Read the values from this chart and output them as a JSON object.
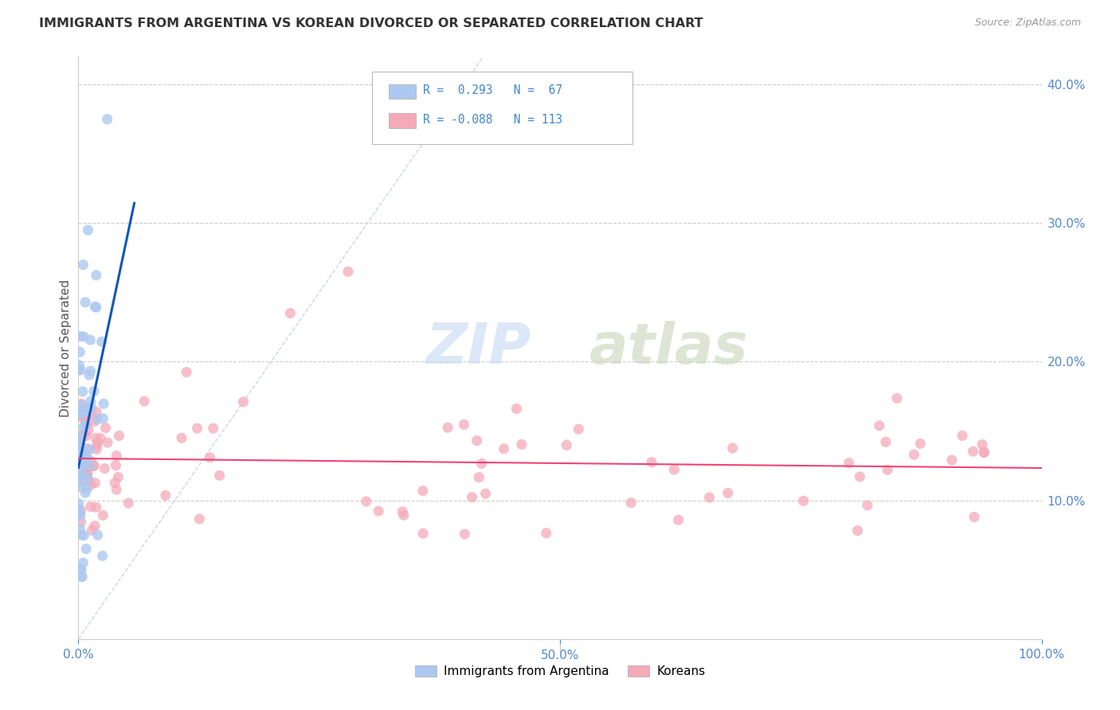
{
  "title": "IMMIGRANTS FROM ARGENTINA VS KOREAN DIVORCED OR SEPARATED CORRELATION CHART",
  "source": "Source: ZipAtlas.com",
  "ylabel": "Divorced or Separated",
  "xlim": [
    0.0,
    1.0
  ],
  "ylim": [
    0.0,
    0.42
  ],
  "argentina_color": "#adc8f0",
  "argentina_edge": "#adc8f0",
  "korean_color": "#f5aaba",
  "korean_edge": "#f5aaba",
  "trend_argentina_color": "#1155bb",
  "trend_korean_color": "#ee4477",
  "diagonal_color": "#c0cce0",
  "background_color": "#ffffff",
  "grid_color": "#cccccc",
  "title_color": "#333333",
  "source_color": "#999999",
  "axis_color": "#5588cc",
  "legend_text_color_blue": "#4488cc",
  "legend_text_color_dark": "#333333",
  "watermark_zip_color": "#c5d8f2",
  "watermark_atlas_color": "#c8d4b8"
}
